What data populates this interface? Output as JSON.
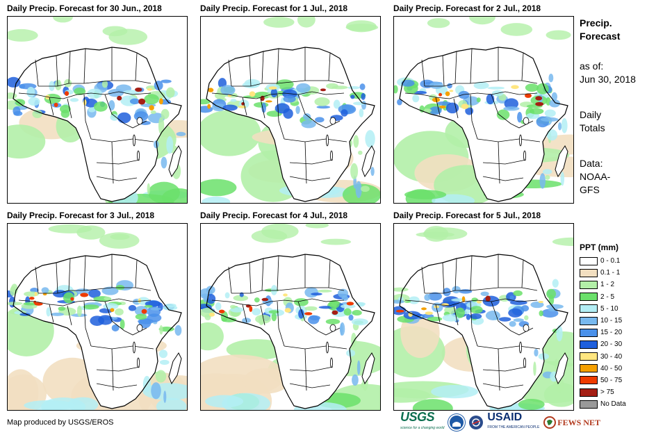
{
  "panels": [
    {
      "title": "Daily Precip. Forecast for 30 Jun., 2018",
      "seed": 11
    },
    {
      "title": "Daily Precip. Forecast for 1 Jul., 2018",
      "seed": 23
    },
    {
      "title": "Daily Precip. Forecast for 2 Jul., 2018",
      "seed": 37
    },
    {
      "title": "Daily Precip. Forecast for 3 Jul., 2018",
      "seed": 41
    },
    {
      "title": "Daily Precip. Forecast for 4 Jul., 2018",
      "seed": 53
    },
    {
      "title": "Daily Precip. Forecast for 5 Jul., 2018",
      "seed": 67
    }
  ],
  "sidebar": {
    "title_line1": "Precip.",
    "title_line2": "Forecast",
    "asof_line1": "as of:",
    "asof_line2": "Jun 30, 2018",
    "totals_line1": "Daily",
    "totals_line2": "Totals",
    "data_line1": "Data:",
    "data_line2": "NOAA-",
    "data_line3": "GFS"
  },
  "legend": {
    "title": "PPT (mm)",
    "items": [
      {
        "label": "0 - 0.1",
        "color": "#ffffff"
      },
      {
        "label": "0.1 - 1",
        "color": "#f2dfc1"
      },
      {
        "label": "1 - 2",
        "color": "#b3f0a8"
      },
      {
        "label": "2 - 5",
        "color": "#6be06b"
      },
      {
        "label": "5 - 10",
        "color": "#b3eef5"
      },
      {
        "label": "10 - 15",
        "color": "#78b9ef"
      },
      {
        "label": "15 - 20",
        "color": "#4a91ea"
      },
      {
        "label": "20 - 30",
        "color": "#1f5fdc"
      },
      {
        "label": "30 - 40",
        "color": "#ffe680"
      },
      {
        "label": "40 - 50",
        "color": "#f5a000"
      },
      {
        "label": "50 - 75",
        "color": "#ee3b00"
      },
      {
        "label": "> 75",
        "color": "#a51e14"
      },
      {
        "label": "No Data",
        "color": "#999999"
      }
    ]
  },
  "footer": {
    "credit": "Map produced by USGS/EROS",
    "logo_usgs": "USGS",
    "logo_usgs_tagline": "science for a changing world",
    "logo_usaid": "USAID",
    "logo_usaid_tagline": "FROM THE AMERICAN PEOPLE",
    "logo_fews": "FEWS NET"
  }
}
